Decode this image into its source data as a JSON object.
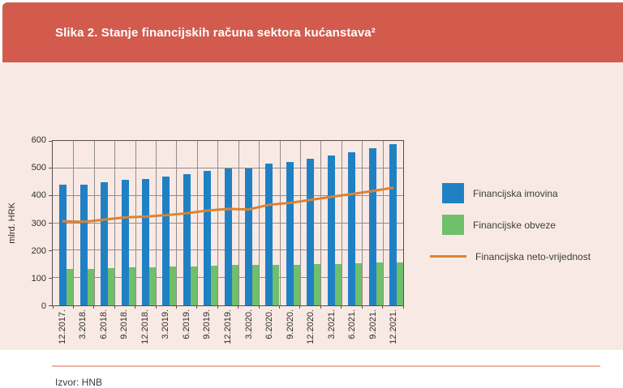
{
  "title": "Slika 2. Stanje financijskih računa sektora kućanstava²",
  "source": "Izvor: HNB",
  "colors": {
    "header_bg": "#d25b4e",
    "body_bg": "#f9e9e4",
    "assets_bar": "#1f81c4",
    "liabilities_bar": "#6fbf6b",
    "net_line": "#dc8233",
    "grid": "#918d8a",
    "frame": "#55504e",
    "footer_rule": "#efb2a5",
    "title_text": "#ffffff",
    "axis_text": "#2e2e2e"
  },
  "chart_data": {
    "type": "bar",
    "subtype": "grouped bars with overlaid line",
    "title": "Slika 2. Stanje financijskih računa sektora kućanstava²",
    "xlabel": "",
    "ylabel": "mlrd. HRK",
    "ylim": [
      0,
      600
    ],
    "yticks": [
      0,
      100,
      200,
      300,
      400,
      500,
      600
    ],
    "grid": true,
    "legend_position": "right",
    "categories": [
      "12.2017.",
      "3.2018.",
      "6.2018.",
      "9.2018.",
      "12.2018.",
      "3.2019.",
      "6.2019.",
      "9.2019.",
      "12.2019.",
      "3.2020.",
      "6.2020.",
      "9.2020.",
      "12.2020.",
      "3.2021.",
      "6.2021.",
      "9.2021.",
      "12.2021."
    ],
    "series": [
      {
        "name": "Financijska imovina",
        "kind": "bar",
        "color": "#1f81c4",
        "values": [
          440,
          441,
          450,
          459,
          462,
          470,
          479,
          491,
          500,
          499,
          516,
          523,
          535,
          547,
          559,
          572,
          587
        ]
      },
      {
        "name": "Financijske obveze",
        "kind": "bar",
        "color": "#6fbf6b",
        "values": [
          133,
          134,
          136,
          138,
          139,
          141,
          143,
          145,
          147,
          147,
          148,
          149,
          150,
          151,
          153,
          156,
          158
        ]
      },
      {
        "name": "Financijska neto-vrijednost",
        "kind": "line",
        "color": "#dc8233",
        "values": [
          307,
          305,
          313,
          321,
          324,
          329,
          336,
          346,
          352,
          350,
          367,
          374,
          385,
          396,
          406,
          417,
          429
        ]
      }
    ]
  }
}
